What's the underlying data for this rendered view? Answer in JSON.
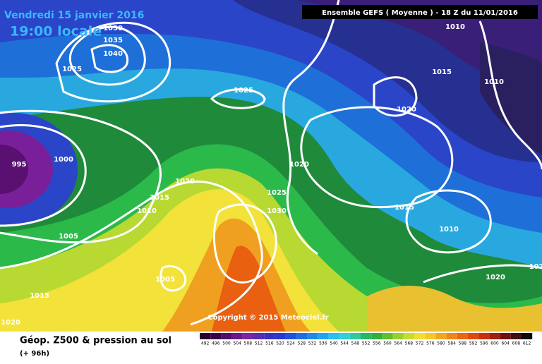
{
  "header": {
    "date_line": "Vendredi 15 janvier 2016",
    "time_line": "19:00 locale",
    "run_info": "Ensemble GEFS  ( Moyenne )  -  18 Z du 11/01/2016"
  },
  "isobar_labels": [
    "1030",
    "1035",
    "1040",
    "1025",
    "1025",
    "1020",
    "1010",
    "1015",
    "1010",
    "995",
    "1000",
    "1020",
    "1015",
    "1010",
    "1005",
    "1020",
    "1025",
    "1030",
    "1015",
    "1010",
    "1005",
    "1015",
    "1020",
    "1020",
    "102"
  ],
  "copyright": "Copyright © 2015 Meteociel.fr",
  "caption": {
    "line1": "Géop. Z500 & pression au sol",
    "line2": "(+ 96h)"
  },
  "scale": {
    "labels": [
      "492",
      "496",
      "500",
      "504",
      "508",
      "512",
      "516",
      "520",
      "524",
      "528",
      "532",
      "536",
      "540",
      "544",
      "548",
      "552",
      "556",
      "560",
      "564",
      "568",
      "572",
      "576",
      "580",
      "584",
      "588",
      "592",
      "596",
      "600",
      "604",
      "608",
      "612"
    ]
  }
}
